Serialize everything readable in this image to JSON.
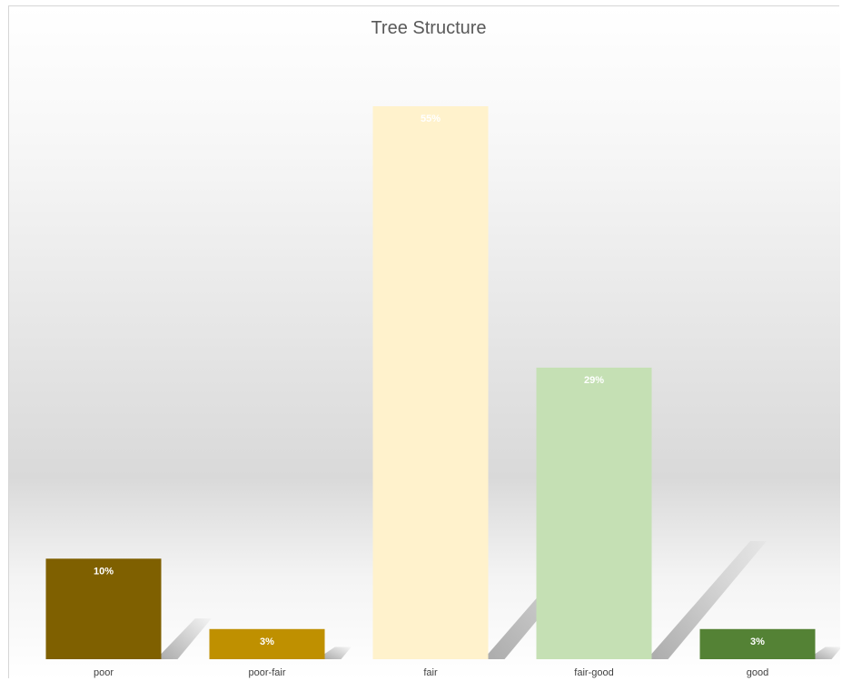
{
  "chart_data": {
    "type": "bar",
    "title": "Tree Structure",
    "xlabel": "",
    "ylabel": "",
    "categories": [
      "poor",
      "poor-fair",
      "fair",
      "fair-good",
      "good"
    ],
    "values": [
      10,
      3,
      55,
      29,
      3
    ],
    "data_labels": [
      "10%",
      "3%",
      "55%",
      "29%",
      "3%"
    ],
    "value_unit": "%",
    "ylim": [
      0,
      55
    ],
    "grid": false,
    "legend": "none",
    "colors": [
      "#7f6000",
      "#bf9000",
      "#fff2cc",
      "#c5e0b4",
      "#548235"
    ],
    "background": {
      "top": "#ffffff",
      "middle": "#d9d9d9",
      "bottom": "#ffffff"
    }
  }
}
